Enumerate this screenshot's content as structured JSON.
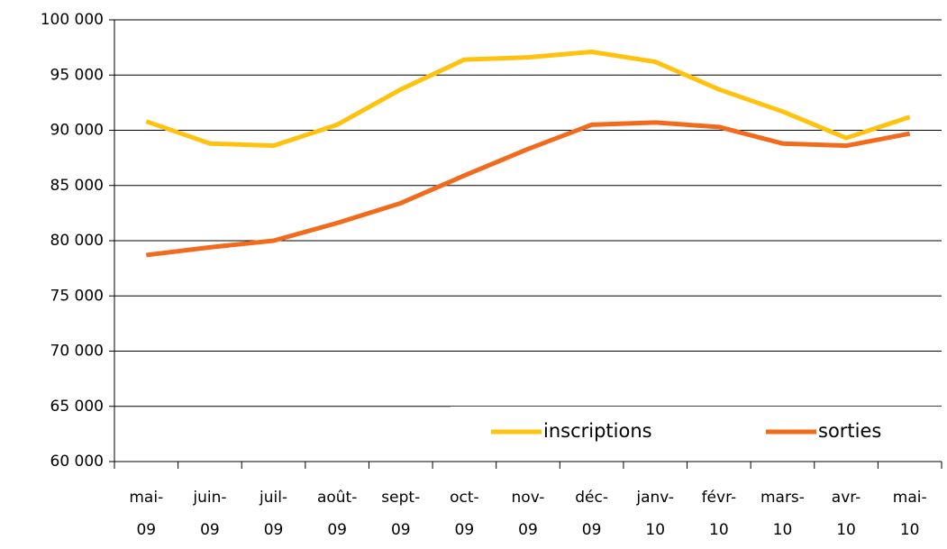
{
  "chart_data": {
    "type": "line",
    "categories": [
      "mai-\n09",
      "juin-\n09",
      "juil-\n09",
      "août-\n09",
      "sept-\n09",
      "oct-\n09",
      "nov-\n09",
      "déc-\n09",
      "janv-\n10",
      "févr-\n10",
      "mars-\n10",
      "avr-\n10",
      "mai-\n10"
    ],
    "series": [
      {
        "name": "inscriptions",
        "color": "#FFC20E",
        "values": [
          90800,
          88800,
          88600,
          90500,
          93700,
          96400,
          96600,
          97100,
          96200,
          93700,
          91700,
          89300,
          91200
        ]
      },
      {
        "name": "sorties",
        "color": "#F26A1B",
        "values": [
          78700,
          79400,
          80000,
          81600,
          83400,
          85900,
          88300,
          90500,
          90700,
          90300,
          88800,
          88600,
          89700
        ]
      }
    ],
    "ylim": [
      60000,
      100000
    ],
    "yticks": [
      {
        "value": 60000,
        "label": "60 000"
      },
      {
        "value": 65000,
        "label": "65 000"
      },
      {
        "value": 70000,
        "label": "70 000"
      },
      {
        "value": 75000,
        "label": "75 000"
      },
      {
        "value": 80000,
        "label": "80 000"
      },
      {
        "value": 85000,
        "label": "85 000"
      },
      {
        "value": 90000,
        "label": "90 000"
      },
      {
        "value": 95000,
        "label": "95 000"
      },
      {
        "value": 100000,
        "label": "100 000"
      }
    ],
    "grid": true,
    "legend": "lower right"
  }
}
